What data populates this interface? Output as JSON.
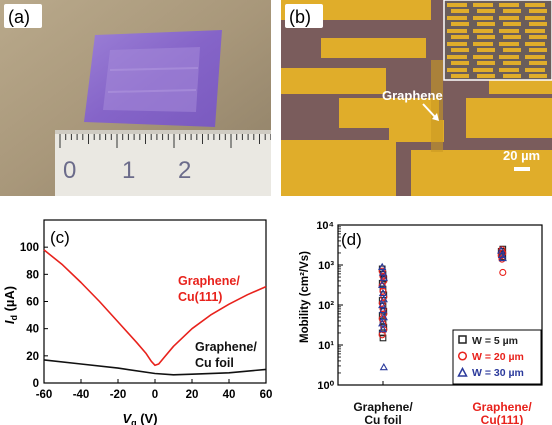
{
  "figure": {
    "panel_a": {
      "label": "(a)",
      "ruler_numbers": [
        "0",
        "1",
        "2"
      ]
    },
    "panel_b": {
      "label": "(b)",
      "annotation": "Graphene",
      "scale_bar": "20 µm"
    },
    "panel_c": {
      "label": "(c)"
    },
    "panel_d": {
      "label": "(d)"
    }
  },
  "chart_data": [
    {
      "type": "line",
      "panel": "(c)",
      "ylabel_main": "I",
      "ylabel_sub": "d",
      "ylabel_unit": " (µA)",
      "xlabel_main": "V",
      "xlabel_sub": "g",
      "xlabel_unit": " (V)",
      "xlim": [
        -60,
        60
      ],
      "ylim": [
        0,
        120
      ],
      "xticks": [
        -60,
        -40,
        -20,
        0,
        20,
        40,
        60
      ],
      "yticks": [
        0,
        20,
        40,
        60,
        80,
        100
      ],
      "grid": false,
      "series": [
        {
          "name": "Graphene/\nCu(111)",
          "label_lines": [
            "Graphene/",
            "Cu(111)"
          ],
          "color": "#e8221c",
          "x": [
            -60,
            -50,
            -40,
            -30,
            -20,
            -10,
            -5,
            -2,
            0,
            2,
            5,
            10,
            20,
            30,
            40,
            50,
            60
          ],
          "y": [
            98,
            87,
            74,
            60,
            45,
            30,
            22,
            16,
            13,
            14,
            19,
            27,
            40,
            50,
            58,
            65,
            71
          ]
        },
        {
          "name": "Graphene/\nCu foil",
          "label_lines": [
            "Graphene/",
            "Cu foil"
          ],
          "color": "#111111",
          "x": [
            -60,
            -40,
            -20,
            0,
            10,
            20,
            40,
            60
          ],
          "y": [
            17,
            14,
            11,
            7,
            6,
            6.5,
            7.5,
            10
          ]
        }
      ]
    },
    {
      "type": "scatter",
      "panel": "(d)",
      "ylabel": "Mobility (cm²/Vs)",
      "yscale": "log",
      "ylim": [
        1,
        10000
      ],
      "ytick_labels": [
        "10⁰",
        "10¹",
        "10²",
        "10³",
        "10⁴"
      ],
      "yticks": [
        1,
        10,
        100,
        1000,
        10000
      ],
      "categories": [
        {
          "lines": [
            "Graphene/",
            "Cu foil"
          ],
          "color": "#111111"
        },
        {
          "lines": [
            "Graphene/",
            "Cu(111)"
          ],
          "color": "#e8221c"
        }
      ],
      "legend_position": "bottom-right",
      "series": [
        {
          "name": "W = 5 µm",
          "marker": "square",
          "color": "#222222",
          "points": [
            {
              "cat": 0,
              "y": 800
            },
            {
              "cat": 0,
              "y": 600
            },
            {
              "cat": 0,
              "y": 450
            },
            {
              "cat": 0,
              "y": 350
            },
            {
              "cat": 0,
              "y": 250
            },
            {
              "cat": 0,
              "y": 180
            },
            {
              "cat": 0,
              "y": 130
            },
            {
              "cat": 0,
              "y": 95
            },
            {
              "cat": 0,
              "y": 70
            },
            {
              "cat": 0,
              "y": 55
            },
            {
              "cat": 0,
              "y": 40
            },
            {
              "cat": 0,
              "y": 28
            },
            {
              "cat": 0,
              "y": 20
            },
            {
              "cat": 0,
              "y": 15
            },
            {
              "cat": 1,
              "y": 2500
            },
            {
              "cat": 1,
              "y": 2200
            },
            {
              "cat": 1,
              "y": 1900
            },
            {
              "cat": 1,
              "y": 1600
            }
          ]
        },
        {
          "name": "W = 20 µm",
          "marker": "circle",
          "color": "#e8221c",
          "points": [
            {
              "cat": 0,
              "y": 700
            },
            {
              "cat": 0,
              "y": 520
            },
            {
              "cat": 0,
              "y": 400
            },
            {
              "cat": 0,
              "y": 300
            },
            {
              "cat": 0,
              "y": 220
            },
            {
              "cat": 0,
              "y": 160
            },
            {
              "cat": 0,
              "y": 110
            },
            {
              "cat": 0,
              "y": 80
            },
            {
              "cat": 0,
              "y": 60
            },
            {
              "cat": 0,
              "y": 45
            },
            {
              "cat": 0,
              "y": 33
            },
            {
              "cat": 0,
              "y": 24
            },
            {
              "cat": 0,
              "y": 18
            },
            {
              "cat": 1,
              "y": 2400
            },
            {
              "cat": 1,
              "y": 2000
            },
            {
              "cat": 1,
              "y": 1700
            },
            {
              "cat": 1,
              "y": 1400
            },
            {
              "cat": 1,
              "y": 650
            }
          ]
        },
        {
          "name": "W = 30 µm",
          "marker": "triangle",
          "color": "#2b3a9c",
          "points": [
            {
              "cat": 0,
              "y": 900
            },
            {
              "cat": 0,
              "y": 650
            },
            {
              "cat": 0,
              "y": 480
            },
            {
              "cat": 0,
              "y": 320
            },
            {
              "cat": 0,
              "y": 200
            },
            {
              "cat": 0,
              "y": 140
            },
            {
              "cat": 0,
              "y": 100
            },
            {
              "cat": 0,
              "y": 75
            },
            {
              "cat": 0,
              "y": 50
            },
            {
              "cat": 0,
              "y": 35
            },
            {
              "cat": 0,
              "y": 25
            },
            {
              "cat": 0,
              "y": 2.8
            },
            {
              "cat": 1,
              "y": 2300
            },
            {
              "cat": 1,
              "y": 1800
            },
            {
              "cat": 1,
              "y": 1500
            }
          ]
        }
      ]
    }
  ]
}
